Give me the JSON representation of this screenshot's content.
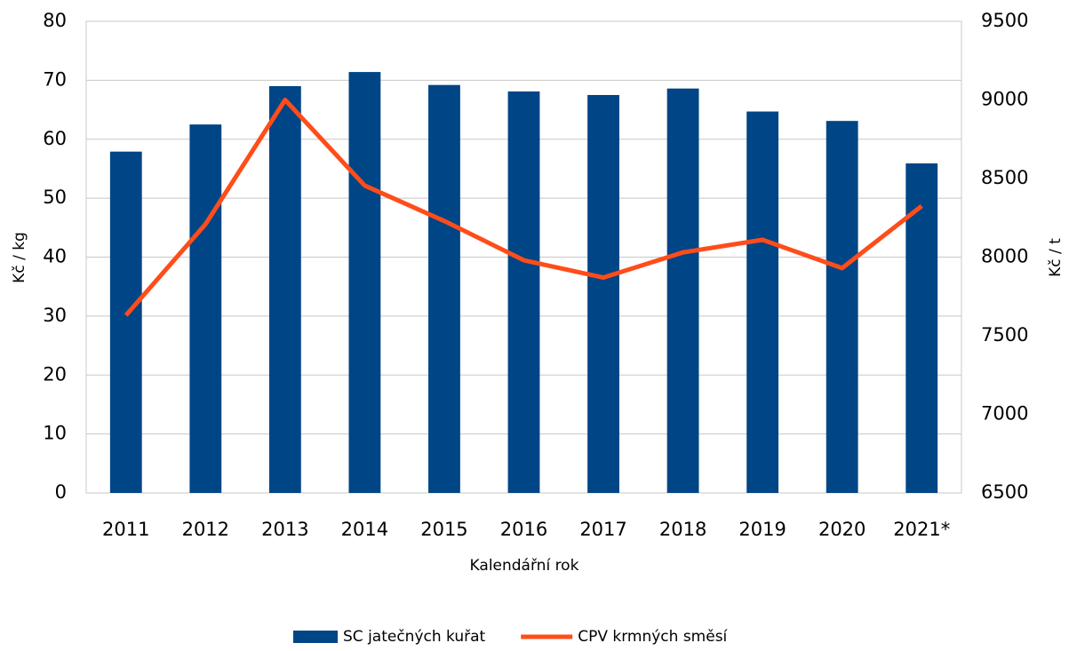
{
  "chart_data": {
    "type": "bar",
    "x_label": "Kalendářní rok",
    "y_label": "Kč / kg",
    "y2_label": "Kč / t",
    "categories": [
      "2011",
      "2012",
      "2013",
      "2014",
      "2015",
      "2016",
      "2017",
      "2018",
      "2019",
      "2020",
      "2021*"
    ],
    "series": [
      {
        "name": "SC jatečných kuřat",
        "type": "bar",
        "color": "#004586",
        "values": [
          57.9,
          62.5,
          69,
          71.4,
          69.2,
          68.1,
          67.5,
          68.6,
          64.7,
          63.1,
          55.9
        ]
      },
      {
        "name": "CPV krmných směsí",
        "type": "line",
        "axis": "y2",
        "color": "#ff4d1a",
        "values": [
          7630,
          8210,
          9000,
          8455,
          8230,
          7980,
          7870,
          8030,
          8110,
          7930,
          8325
        ]
      }
    ],
    "ylim": [
      0,
      80
    ],
    "yticks": [
      0,
      10,
      20,
      30,
      40,
      50,
      60,
      70,
      80
    ],
    "y2lim": [
      6500,
      9500
    ],
    "y2ticks": [
      6500,
      7000,
      7500,
      8000,
      8500,
      9000,
      9500
    ],
    "grid": true,
    "legend": "bottom"
  }
}
